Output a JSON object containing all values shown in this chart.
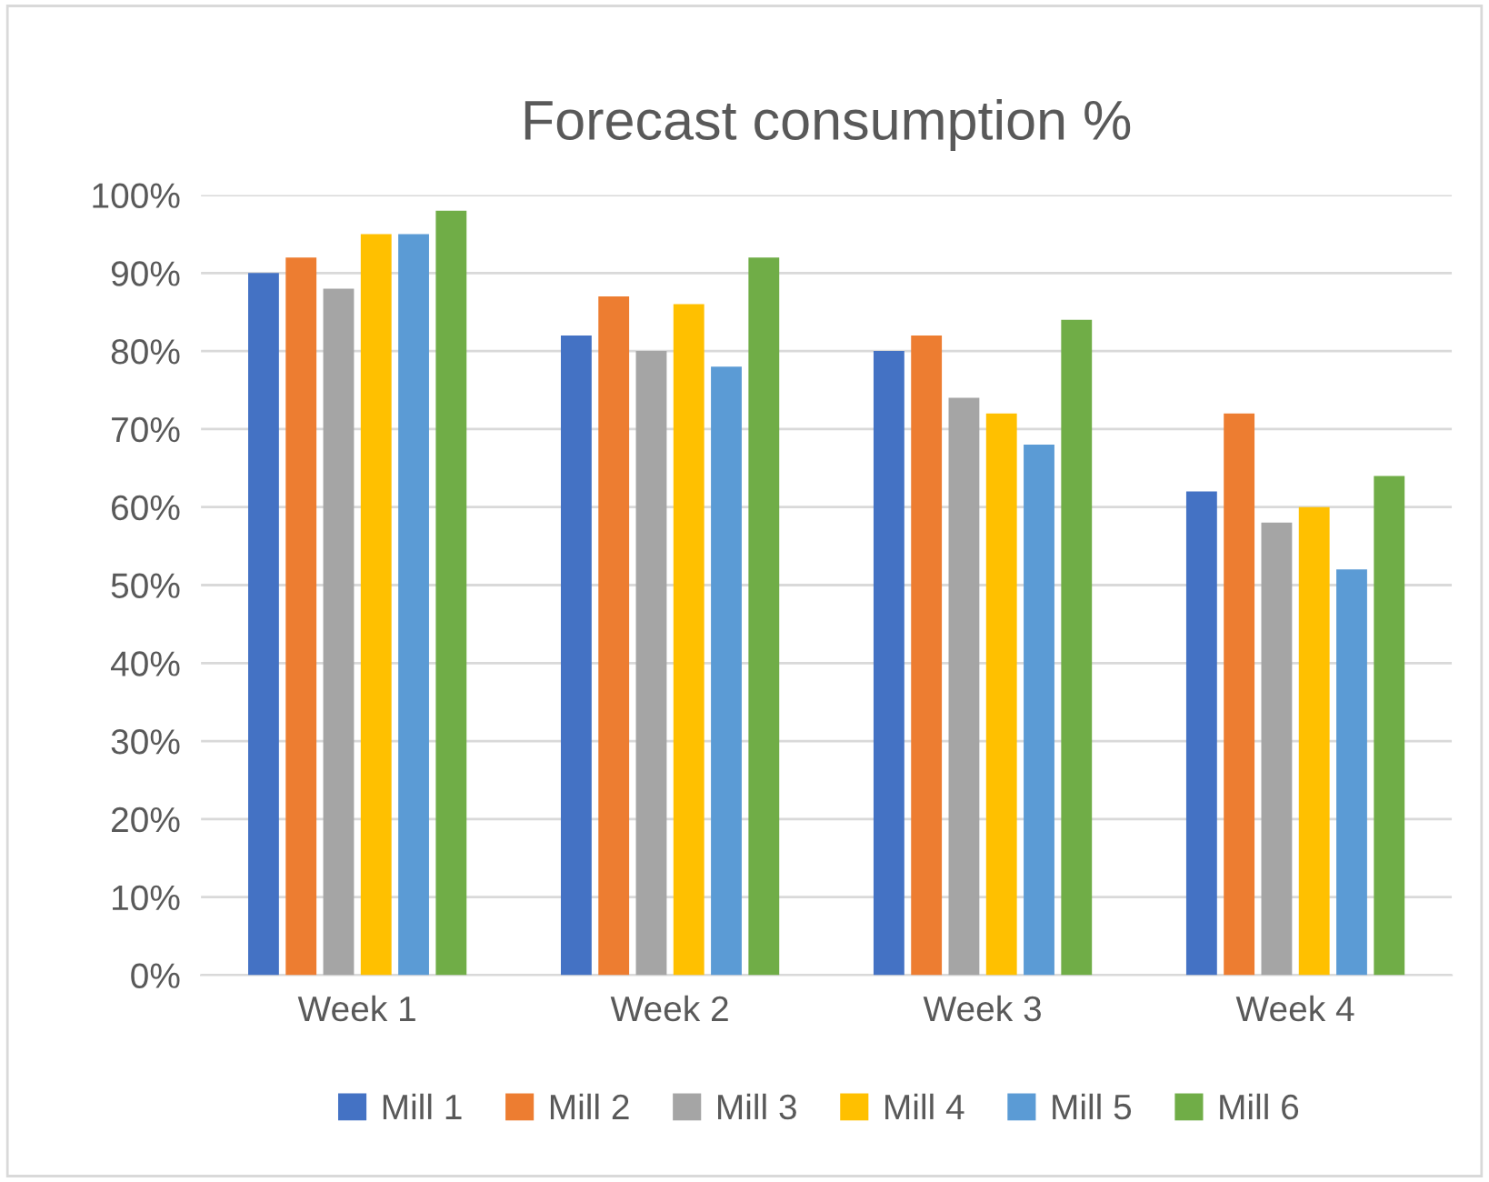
{
  "chart_data": {
    "type": "bar",
    "title": "Forecast consumption %",
    "categories": [
      "Week 1",
      "Week 2",
      "Week 3",
      "Week 4"
    ],
    "series": [
      {
        "name": "Mill 1",
        "color": "#4472c4",
        "values": [
          90,
          82,
          80,
          62
        ]
      },
      {
        "name": "Mill 2",
        "color": "#ed7d31",
        "values": [
          92,
          87,
          82,
          72
        ]
      },
      {
        "name": "Mill 3",
        "color": "#a5a5a5",
        "values": [
          88,
          80,
          74,
          58
        ]
      },
      {
        "name": "Mill 4",
        "color": "#ffc000",
        "values": [
          95,
          86,
          72,
          60
        ]
      },
      {
        "name": "Mill 5",
        "color": "#5b9bd5",
        "values": [
          95,
          78,
          68,
          52
        ]
      },
      {
        "name": "Mill 6",
        "color": "#70ad47",
        "values": [
          98,
          92,
          84,
          64
        ]
      }
    ],
    "ylim": [
      0,
      100
    ],
    "yticks": [
      {
        "value": 0,
        "label": "0%"
      },
      {
        "value": 10,
        "label": "10%"
      },
      {
        "value": 20,
        "label": "20%"
      },
      {
        "value": 30,
        "label": "30%"
      },
      {
        "value": 40,
        "label": "40%"
      },
      {
        "value": 50,
        "label": "50%"
      },
      {
        "value": 60,
        "label": "60%"
      },
      {
        "value": 70,
        "label": "70%"
      },
      {
        "value": 80,
        "label": "80%"
      },
      {
        "value": 90,
        "label": "90%"
      },
      {
        "value": 100,
        "label": "100%"
      }
    ],
    "grid": "y",
    "legend": "bottom"
  }
}
